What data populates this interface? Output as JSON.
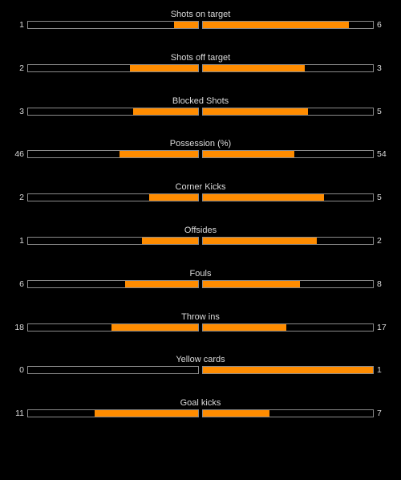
{
  "colors": {
    "background": "#000000",
    "bar_fill": "#ff8c00",
    "bar_border": "#8a8a8a",
    "text": "#dcdcdc"
  },
  "stats": [
    {
      "label": "Shots on target",
      "home": "1",
      "away": "6",
      "home_fill": 0.14,
      "away_fill": 0.86
    },
    {
      "label": "Shots off target",
      "home": "2",
      "away": "3",
      "home_fill": 0.4,
      "away_fill": 0.6
    },
    {
      "label": "Blocked Shots",
      "home": "3",
      "away": "5",
      "home_fill": 0.38,
      "away_fill": 0.62
    },
    {
      "label": "Possession (%)",
      "home": "46",
      "away": "54",
      "home_fill": 0.46,
      "away_fill": 0.54
    },
    {
      "label": "Corner Kicks",
      "home": "2",
      "away": "5",
      "home_fill": 0.29,
      "away_fill": 0.71
    },
    {
      "label": "Offsides",
      "home": "1",
      "away": "2",
      "home_fill": 0.33,
      "away_fill": 0.67
    },
    {
      "label": "Fouls",
      "home": "6",
      "away": "8",
      "home_fill": 0.43,
      "away_fill": 0.57
    },
    {
      "label": "Throw ins",
      "home": "18",
      "away": "17",
      "home_fill": 0.51,
      "away_fill": 0.49
    },
    {
      "label": "Yellow cards",
      "home": "0",
      "away": "1",
      "home_fill": 0.0,
      "away_fill": 1.0
    },
    {
      "label": "Goal kicks",
      "home": "11",
      "away": "7",
      "home_fill": 0.61,
      "away_fill": 0.39
    }
  ]
}
